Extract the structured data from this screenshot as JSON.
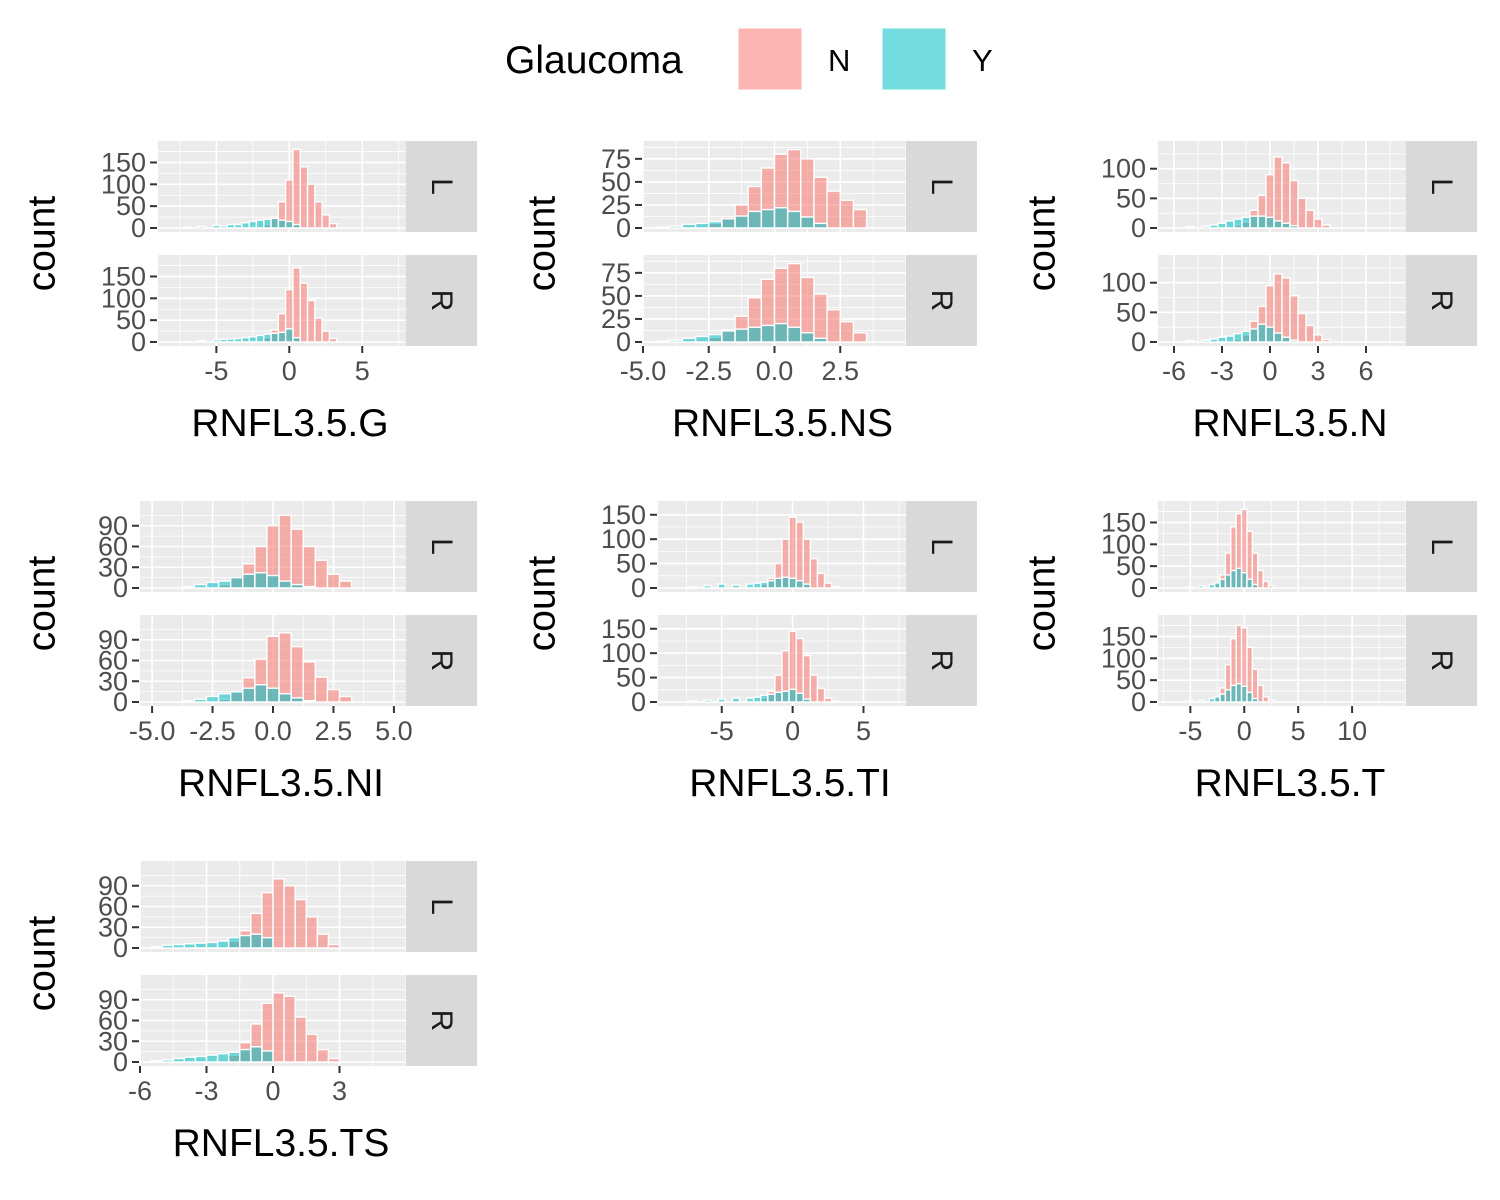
{
  "legend": {
    "title": "Glaucoma",
    "items": [
      {
        "label": "N",
        "color": "#F8766D"
      },
      {
        "label": "Y",
        "color": "#00BFC4"
      }
    ]
  },
  "chart_data": [
    {
      "type": "bar",
      "xlabel": "RNFL3.5.G",
      "ylabel": "count",
      "xlim": [
        -9,
        8
      ],
      "xticks": [
        -5,
        0,
        5
      ],
      "xtick_labels": [
        "-5",
        "0",
        "5"
      ],
      "ylim": [
        0,
        190
      ],
      "yticks": [
        0,
        50,
        100,
        150
      ],
      "ytick_labels": [
        "0",
        "50",
        "100",
        "150"
      ],
      "facets": [
        {
          "strip": "L",
          "N": {
            "x": [
              -4.5,
              -3.5,
              -2.5,
              -1.5,
              -1,
              -0.5,
              0,
              0.5,
              1,
              1.5,
              2,
              2.5,
              3
            ],
            "values": [
              1,
              2,
              3,
              8,
              25,
              60,
              110,
              180,
              140,
              100,
              60,
              30,
              10
            ]
          },
          "Y": {
            "x": [
              -7,
              -6,
              -5,
              -4.5,
              -4,
              -3.5,
              -3,
              -2.5,
              -2,
              -1.5,
              -1,
              -0.5,
              0,
              0.5
            ],
            "values": [
              2,
              4,
              6,
              5,
              8,
              8,
              12,
              15,
              18,
              20,
              22,
              18,
              15,
              8
            ]
          }
        },
        {
          "strip": "R",
          "N": {
            "x": [
              -4.5,
              -3.5,
              -2.5,
              -1.5,
              -1,
              -0.5,
              0,
              0.5,
              1,
              1.5,
              2,
              2.5,
              3
            ],
            "values": [
              1,
              2,
              3,
              10,
              28,
              65,
              120,
              170,
              135,
              95,
              55,
              25,
              8
            ]
          },
          "Y": {
            "x": [
              -7,
              -6,
              -5,
              -4.5,
              -4,
              -3.5,
              -3,
              -2.5,
              -2,
              -1.5,
              -1,
              -0.5,
              0,
              0.5
            ],
            "values": [
              1,
              3,
              5,
              6,
              7,
              8,
              10,
              12,
              15,
              18,
              20,
              22,
              30,
              10
            ]
          }
        }
      ]
    },
    {
      "type": "bar",
      "xlabel": "RNFL3.5.NS",
      "ylabel": "count",
      "xlim": [
        -5,
        5
      ],
      "xticks": [
        -5,
        -2.5,
        0,
        2.5
      ],
      "xtick_labels": [
        "-5.0",
        "-2.5",
        "0.0",
        "2.5"
      ],
      "ylim": [
        0,
        90
      ],
      "yticks": [
        0,
        25,
        50,
        75
      ],
      "ytick_labels": [
        "0",
        "25",
        "50",
        "75"
      ],
      "facets": [
        {
          "strip": "L",
          "N": {
            "x": [
              -2.25,
              -1.75,
              -1.25,
              -0.75,
              -0.25,
              0.25,
              0.75,
              1.25,
              1.75,
              2.25,
              2.75,
              3.25
            ],
            "values": [
              5,
              12,
              25,
              45,
              65,
              80,
              85,
              75,
              55,
              40,
              30,
              20
            ]
          },
          "Y": {
            "x": [
              -4.25,
              -3.75,
              -3.25,
              -2.75,
              -2.25,
              -1.75,
              -1.25,
              -0.75,
              -0.25,
              0.25,
              0.75,
              1.25,
              1.75
            ],
            "values": [
              1,
              2,
              4,
              5,
              7,
              10,
              13,
              18,
              20,
              22,
              18,
              12,
              5
            ]
          }
        },
        {
          "strip": "R",
          "N": {
            "x": [
              -2.25,
              -1.75,
              -1.25,
              -0.75,
              -0.25,
              0.25,
              0.75,
              1.25,
              1.75,
              2.25,
              2.75,
              3.25
            ],
            "values": [
              5,
              13,
              28,
              48,
              68,
              80,
              85,
              70,
              52,
              35,
              22,
              10
            ]
          },
          "Y": {
            "x": [
              -4.25,
              -3.75,
              -3.25,
              -2.75,
              -2.25,
              -1.75,
              -1.25,
              -0.75,
              -0.25,
              0.25,
              0.75,
              1.25,
              1.75
            ],
            "values": [
              1,
              2,
              4,
              6,
              8,
              12,
              14,
              16,
              18,
              20,
              16,
              10,
              4
            ]
          }
        }
      ]
    },
    {
      "type": "bar",
      "xlabel": "RNFL3.5.N",
      "ylabel": "count",
      "xlim": [
        -7,
        8.5
      ],
      "xticks": [
        -6,
        -3,
        0,
        3,
        6
      ],
      "xtick_labels": [
        "-6",
        "-3",
        "0",
        "3",
        "6"
      ],
      "ylim": [
        0,
        140
      ],
      "yticks": [
        0,
        50,
        100
      ],
      "ytick_labels": [
        "0",
        "50",
        "100"
      ],
      "facets": [
        {
          "strip": "L",
          "N": {
            "x": [
              -2,
              -1.5,
              -1,
              -0.5,
              0,
              0.5,
              1,
              1.5,
              2,
              2.5,
              3,
              3.5
            ],
            "values": [
              5,
              10,
              30,
              55,
              90,
              120,
              110,
              80,
              50,
              30,
              15,
              5
            ]
          },
          "Y": {
            "x": [
              -5,
              -4,
              -3.5,
              -3,
              -2.5,
              -2,
              -1.5,
              -1,
              -0.5,
              0,
              0.5,
              1,
              1.5
            ],
            "values": [
              2,
              3,
              5,
              8,
              12,
              15,
              18,
              20,
              20,
              18,
              12,
              8,
              4
            ]
          }
        },
        {
          "strip": "R",
          "N": {
            "x": [
              -2,
              -1.5,
              -1,
              -0.5,
              0,
              0.5,
              1,
              1.5,
              2,
              2.5,
              3,
              3.5
            ],
            "values": [
              5,
              12,
              35,
              60,
              95,
              115,
              108,
              78,
              48,
              28,
              12,
              4
            ]
          },
          "Y": {
            "x": [
              -5,
              -4,
              -3.5,
              -3,
              -2.5,
              -2,
              -1.5,
              -1,
              -0.5,
              0,
              0.5,
              1,
              1.5
            ],
            "values": [
              2,
              3,
              5,
              8,
              10,
              14,
              18,
              22,
              30,
              25,
              15,
              8,
              3
            ]
          }
        }
      ]
    },
    {
      "type": "bar",
      "xlabel": "RNFL3.5.NI",
      "ylabel": "count",
      "xlim": [
        -5.5,
        5.5
      ],
      "xticks": [
        -5,
        -2.5,
        0,
        2.5,
        5
      ],
      "xtick_labels": [
        "-5.0",
        "-2.5",
        "0.0",
        "2.5",
        "5.0"
      ],
      "ylim": [
        0,
        120
      ],
      "yticks": [
        0,
        30,
        60,
        90
      ],
      "ytick_labels": [
        "0",
        "30",
        "60",
        "90"
      ],
      "facets": [
        {
          "strip": "L",
          "N": {
            "x": [
              -2,
              -1.5,
              -1,
              -0.5,
              0,
              0.5,
              1,
              1.5,
              2,
              2.5,
              3
            ],
            "values": [
              5,
              15,
              35,
              60,
              90,
              105,
              85,
              60,
              40,
              20,
              10
            ]
          },
          "Y": {
            "x": [
              -3.5,
              -3,
              -2.5,
              -2,
              -1.5,
              -1,
              -0.5,
              0,
              0.5,
              1,
              1.5
            ],
            "values": [
              2,
              5,
              8,
              10,
              15,
              20,
              22,
              18,
              10,
              5,
              2
            ]
          }
        },
        {
          "strip": "R",
          "N": {
            "x": [
              -2,
              -1.5,
              -1,
              -0.5,
              0,
              0.5,
              1,
              1.5,
              2,
              2.5,
              3
            ],
            "values": [
              4,
              14,
              35,
              62,
              95,
              100,
              80,
              58,
              36,
              18,
              8
            ]
          },
          "Y": {
            "x": [
              -3.5,
              -3,
              -2.5,
              -2,
              -1.5,
              -1,
              -0.5,
              0,
              0.5,
              1,
              1.5
            ],
            "values": [
              2,
              4,
              8,
              12,
              15,
              20,
              25,
              20,
              12,
              6,
              2
            ]
          }
        }
      ]
    },
    {
      "type": "bar",
      "xlabel": "RNFL3.5.TI",
      "ylabel": "count",
      "xlim": [
        -9.5,
        8
      ],
      "xticks": [
        -5,
        0,
        5
      ],
      "xtick_labels": [
        "-5",
        "0",
        "5"
      ],
      "ylim": [
        0,
        170
      ],
      "yticks": [
        0,
        50,
        100,
        150
      ],
      "ytick_labels": [
        "0",
        "50",
        "100",
        "150"
      ],
      "facets": [
        {
          "strip": "L",
          "N": {
            "x": [
              -3,
              -2,
              -1.5,
              -1,
              -0.5,
              0,
              0.5,
              1,
              1.5,
              2,
              2.5,
              3
            ],
            "values": [
              3,
              8,
              20,
              50,
              100,
              145,
              135,
              100,
              60,
              30,
              10,
              3
            ]
          },
          "Y": {
            "x": [
              -7,
              -6,
              -5,
              -4,
              -3,
              -2.5,
              -2,
              -1.5,
              -1,
              -0.5,
              0,
              0.5,
              1
            ],
            "values": [
              2,
              5,
              8,
              6,
              8,
              10,
              12,
              15,
              20,
              22,
              20,
              15,
              8
            ]
          }
        },
        {
          "strip": "R",
          "N": {
            "x": [
              -3,
              -2,
              -1.5,
              -1,
              -0.5,
              0,
              0.5,
              1,
              1.5,
              2,
              2.5,
              3
            ],
            "values": [
              3,
              8,
              22,
              55,
              105,
              145,
              130,
              95,
              55,
              28,
              8,
              2
            ]
          },
          "Y": {
            "x": [
              -7,
              -6,
              -5,
              -4,
              -3,
              -2.5,
              -2,
              -1.5,
              -1,
              -0.5,
              0,
              0.5,
              1
            ],
            "values": [
              2,
              4,
              6,
              8,
              8,
              10,
              14,
              16,
              20,
              22,
              26,
              18,
              6
            ]
          }
        }
      ]
    },
    {
      "type": "bar",
      "xlabel": "RNFL3.5.T",
      "ylabel": "count",
      "xlim": [
        -8,
        15
      ],
      "xticks": [
        -5,
        0,
        5,
        10
      ],
      "xtick_labels": [
        "-5",
        "0",
        "5",
        "10"
      ],
      "ylim": [
        0,
        190
      ],
      "yticks": [
        0,
        50,
        100,
        150
      ],
      "ytick_labels": [
        "0",
        "50",
        "100",
        "150"
      ],
      "facets": [
        {
          "strip": "L",
          "N": {
            "x": [
              -2.5,
              -2,
              -1.5,
              -1,
              -0.5,
              0,
              0.5,
              1,
              1.5,
              2,
              2.5
            ],
            "values": [
              10,
              30,
              80,
              140,
              170,
              180,
              130,
              80,
              40,
              15,
              5
            ]
          },
          "Y": {
            "x": [
              -5,
              -4,
              -3,
              -2.5,
              -2,
              -1.5,
              -1,
              -0.5,
              0,
              0.5,
              1
            ],
            "values": [
              2,
              5,
              8,
              12,
              20,
              30,
              40,
              45,
              35,
              20,
              8
            ]
          }
        },
        {
          "strip": "R",
          "N": {
            "x": [
              -2.5,
              -2,
              -1.5,
              -1,
              -0.5,
              0,
              0.5,
              1,
              1.5,
              2,
              2.5
            ],
            "values": [
              10,
              32,
              85,
              145,
              175,
              170,
              125,
              75,
              38,
              12,
              4
            ]
          },
          "Y": {
            "x": [
              -5,
              -4,
              -3,
              -2.5,
              -2,
              -1.5,
              -1,
              -0.5,
              0,
              0.5,
              1
            ],
            "values": [
              2,
              4,
              8,
              12,
              18,
              28,
              38,
              42,
              36,
              22,
              8
            ]
          }
        }
      ]
    },
    {
      "type": "bar",
      "xlabel": "RNFL3.5.TS",
      "ylabel": "count",
      "xlim": [
        -6,
        6
      ],
      "xticks": [
        -6,
        -3,
        0,
        3
      ],
      "xtick_labels": [
        "-6",
        "-3",
        "0",
        "3"
      ],
      "ylim": [
        0,
        120
      ],
      "yticks": [
        0,
        30,
        60,
        90
      ],
      "ytick_labels": [
        "0",
        "30",
        "60",
        "90"
      ],
      "facets": [
        {
          "strip": "L",
          "N": {
            "x": [
              -1.75,
              -1.25,
              -0.75,
              -0.25,
              0.25,
              0.75,
              1.25,
              1.75,
              2.25,
              2.75
            ],
            "values": [
              10,
              25,
              50,
              80,
              100,
              90,
              70,
              45,
              20,
              5
            ]
          },
          "Y": {
            "x": [
              -5.25,
              -4.75,
              -4.25,
              -3.75,
              -3.25,
              -2.75,
              -2.25,
              -1.75,
              -1.25,
              -0.75,
              -0.25
            ],
            "values": [
              2,
              4,
              5,
              6,
              7,
              8,
              10,
              15,
              18,
              20,
              15
            ]
          }
        },
        {
          "strip": "R",
          "N": {
            "x": [
              -1.75,
              -1.25,
              -0.75,
              -0.25,
              0.25,
              0.75,
              1.25,
              1.75,
              2.25,
              2.75
            ],
            "values": [
              10,
              28,
              55,
              85,
              100,
              95,
              65,
              40,
              18,
              5
            ]
          },
          "Y": {
            "x": [
              -5.25,
              -4.75,
              -4.25,
              -3.75,
              -3.25,
              -2.75,
              -2.25,
              -1.75,
              -1.25,
              -0.75,
              -0.25
            ],
            "values": [
              2,
              3,
              5,
              7,
              8,
              10,
              12,
              14,
              18,
              22,
              16
            ]
          }
        }
      ]
    }
  ]
}
